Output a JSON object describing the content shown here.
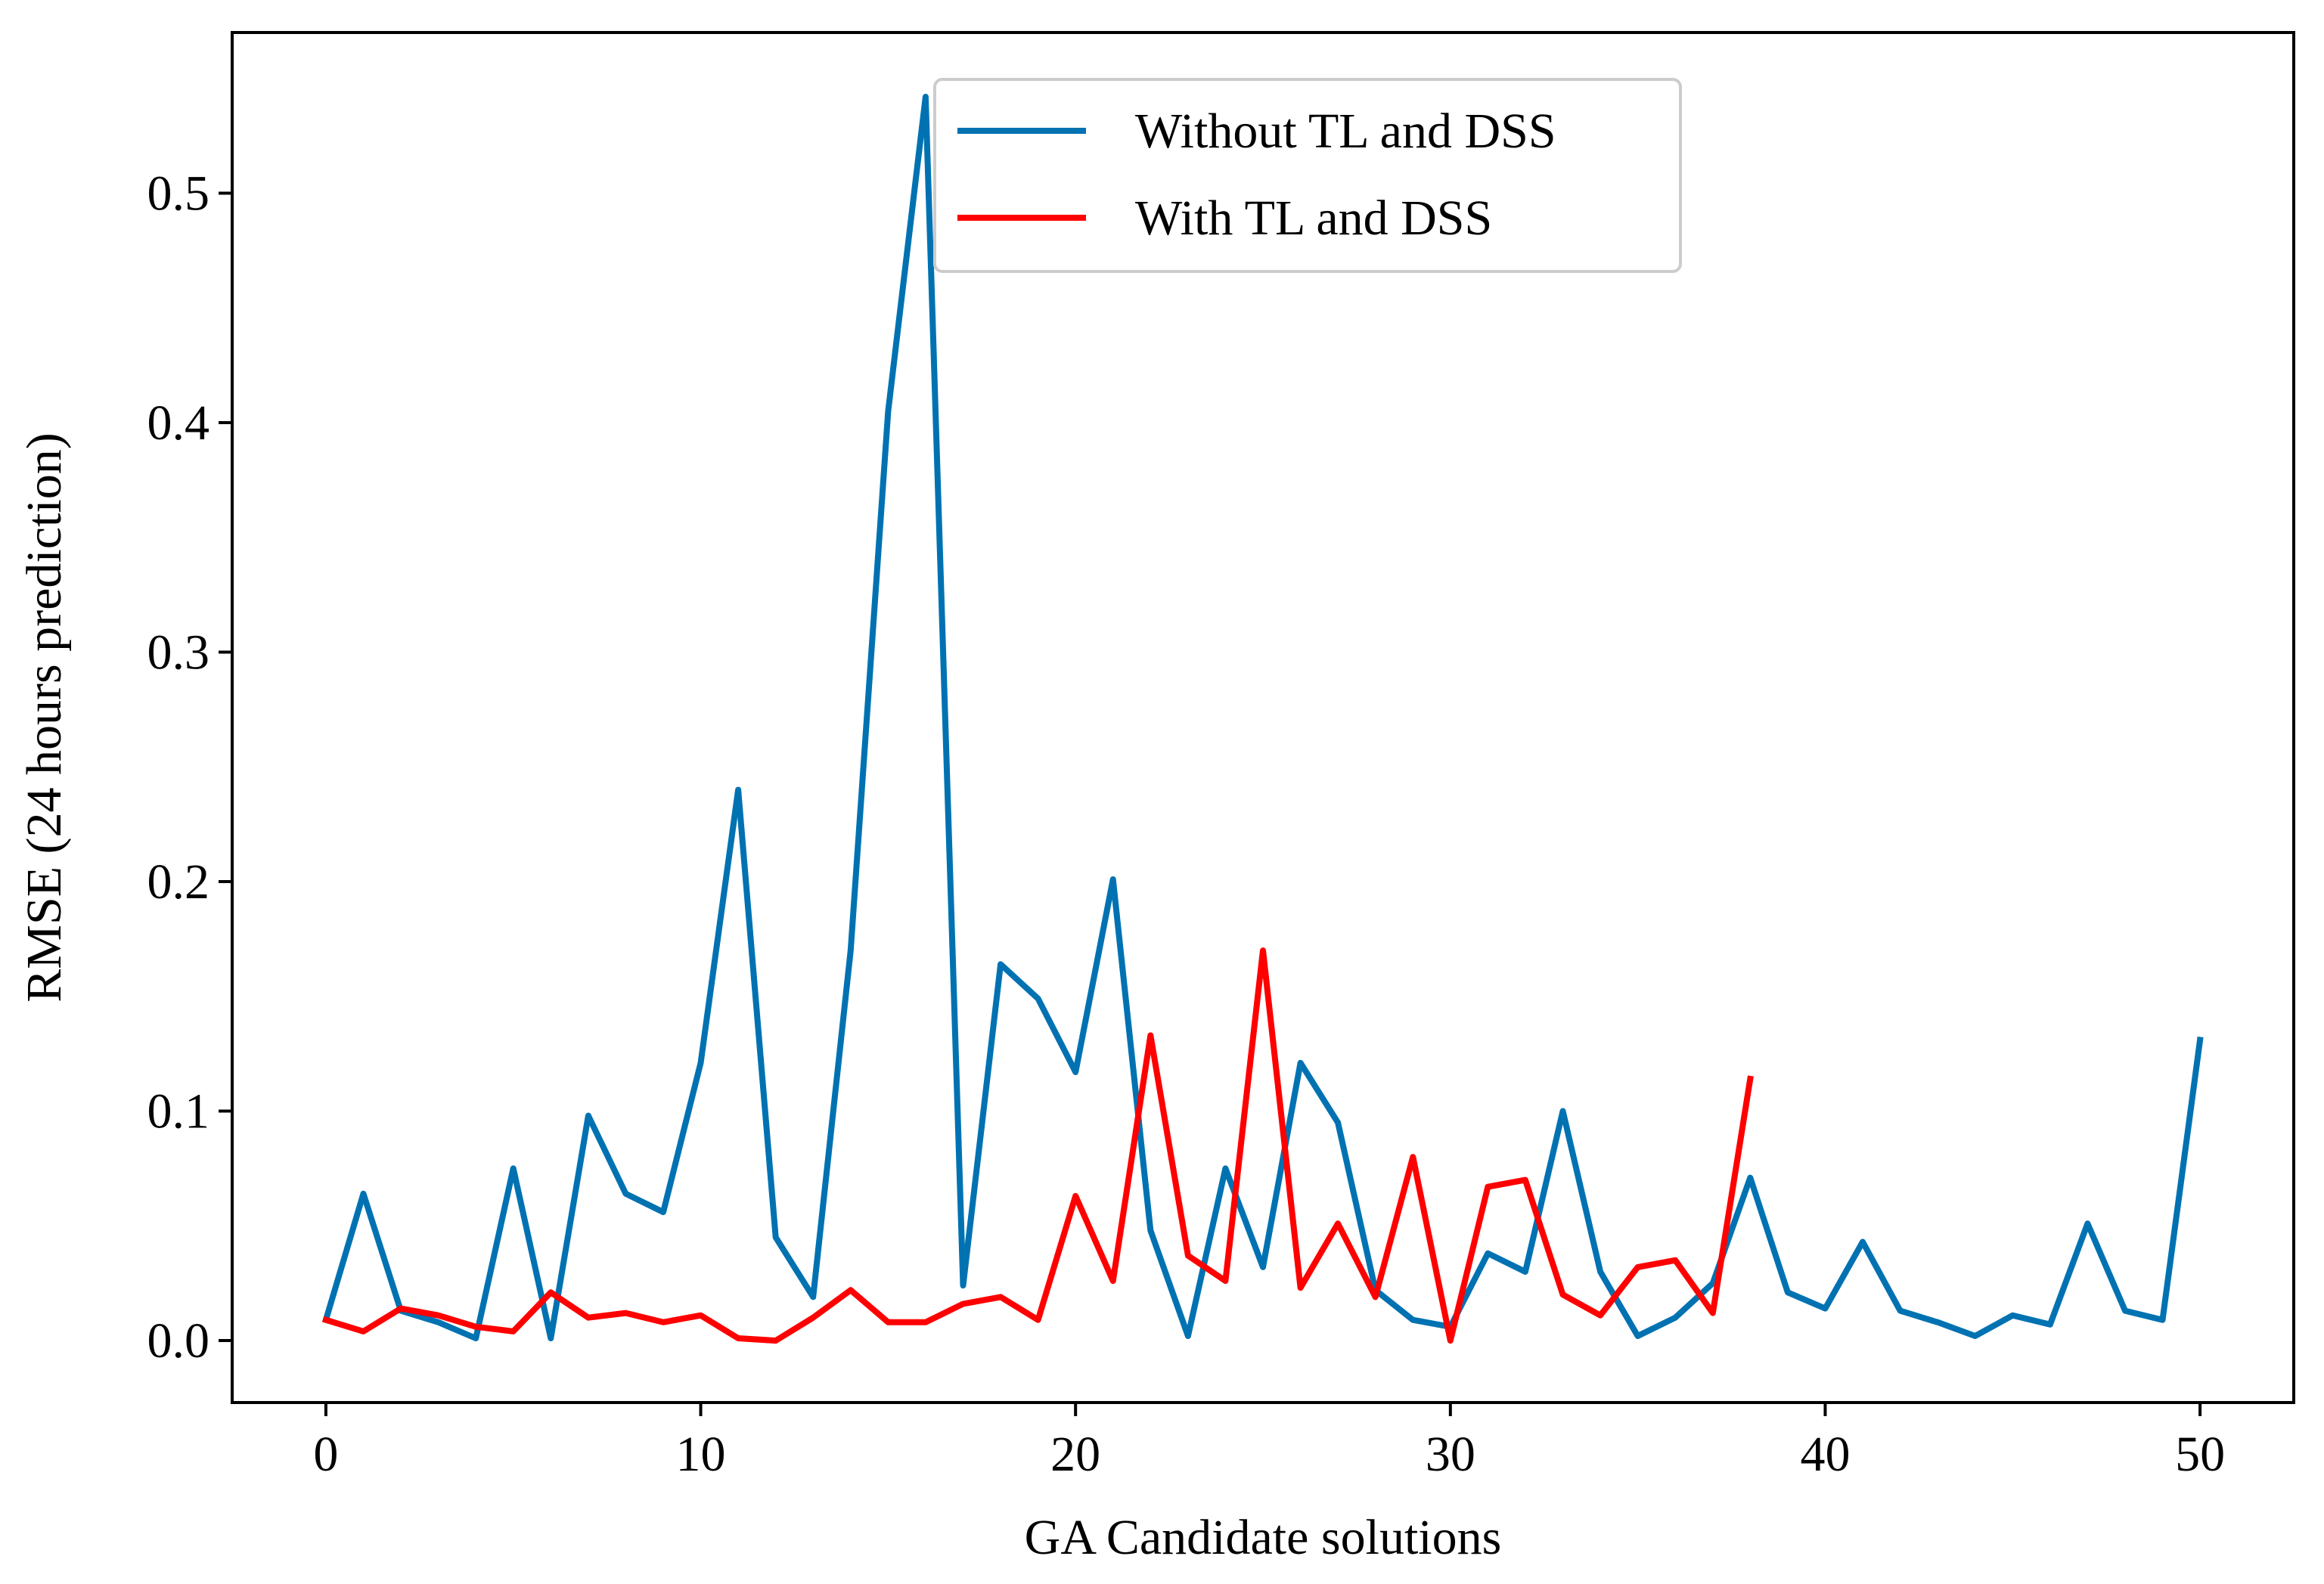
{
  "chart_data": {
    "type": "line",
    "title": "",
    "xlabel": "GA Candidate solutions",
    "ylabel": "RMSE (24 hours prediction)",
    "xlim": [
      -2.5,
      52.5
    ],
    "ylim": [
      -0.027,
      0.57
    ],
    "xticks": [
      0,
      10,
      20,
      30,
      40,
      50
    ],
    "xtick_labels": [
      "0",
      "10",
      "20",
      "30",
      "40",
      "50"
    ],
    "yticks": [
      0.0,
      0.1,
      0.2,
      0.3,
      0.4,
      0.5
    ],
    "ytick_labels": [
      "0.0",
      "0.1",
      "0.2",
      "0.3",
      "0.4",
      "0.5"
    ],
    "grid": false,
    "legend_position": "upper-center",
    "series": [
      {
        "name": "Without TL and DSS",
        "color": "#0072B2",
        "x": [
          0,
          1,
          2,
          3,
          4,
          5,
          6,
          7,
          8,
          9,
          10,
          11,
          12,
          13,
          14,
          15,
          16,
          17,
          18,
          19,
          20,
          21,
          22,
          23,
          24,
          25,
          26,
          27,
          28,
          29,
          30,
          31,
          32,
          33,
          34,
          35,
          36,
          37,
          38,
          39,
          40,
          41,
          42,
          43,
          44,
          45,
          46,
          47,
          48,
          49,
          50
        ],
        "values": [
          0.009,
          0.064,
          0.013,
          0.008,
          0.001,
          0.075,
          0.001,
          0.098,
          0.064,
          0.056,
          0.121,
          0.24,
          0.045,
          0.019,
          0.17,
          0.405,
          0.542,
          0.024,
          0.164,
          0.149,
          0.117,
          0.201,
          0.048,
          0.002,
          0.075,
          0.032,
          0.121,
          0.095,
          0.022,
          0.009,
          0.006,
          0.038,
          0.03,
          0.1,
          0.03,
          0.002,
          0.01,
          0.025,
          0.071,
          0.021,
          0.014,
          0.043,
          0.013,
          0.008,
          0.002,
          0.011,
          0.007,
          0.051,
          0.013,
          0.009,
          0.131
        ]
      },
      {
        "name": "With TL and DSS",
        "color": "#FF0000",
        "x": [
          0,
          1,
          2,
          3,
          4,
          5,
          6,
          7,
          8,
          9,
          10,
          11,
          12,
          13,
          14,
          15,
          16,
          17,
          18,
          19,
          20,
          21,
          22,
          23,
          24,
          25,
          26,
          27,
          28,
          29,
          30,
          31,
          32,
          33,
          34,
          35,
          36,
          37,
          38
        ],
        "values": [
          0.009,
          0.004,
          0.014,
          0.011,
          0.006,
          0.004,
          0.021,
          0.01,
          0.012,
          0.008,
          0.011,
          0.001,
          0.0,
          0.01,
          0.022,
          0.008,
          0.008,
          0.016,
          0.019,
          0.009,
          0.063,
          0.026,
          0.133,
          0.037,
          0.026,
          0.17,
          0.023,
          0.051,
          0.019,
          0.08,
          0.0,
          0.067,
          0.07,
          0.02,
          0.011,
          0.032,
          0.035,
          0.012,
          0.114
        ]
      }
    ]
  }
}
